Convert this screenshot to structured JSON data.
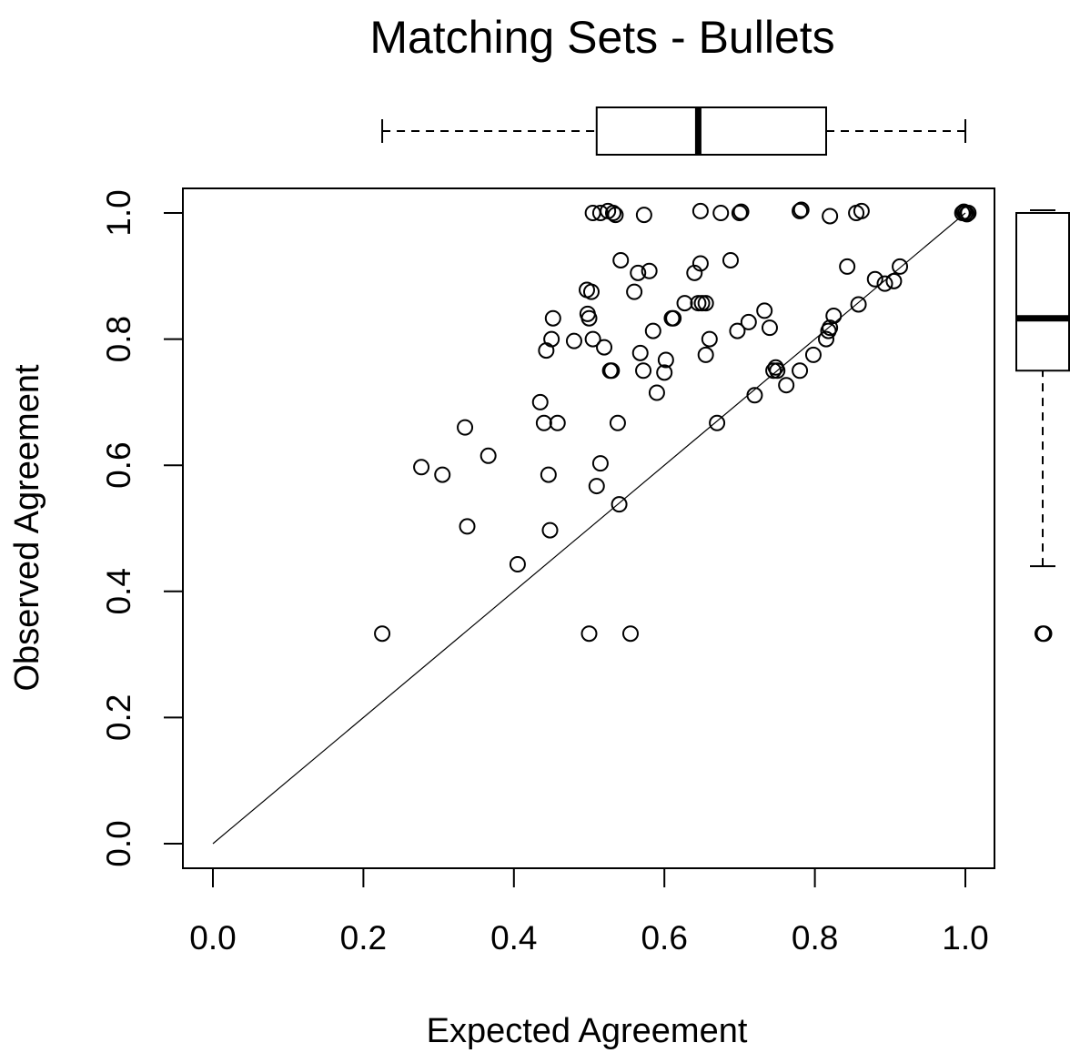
{
  "chart_data": {
    "type": "scatter",
    "title": "Matching Sets - Bullets",
    "xlabel": "Expected Agreement",
    "ylabel": "Observed Agreement",
    "xlim": [
      0.0,
      1.0
    ],
    "ylim": [
      0.0,
      1.0
    ],
    "x_ticks": [
      "0.0",
      "0.2",
      "0.4",
      "0.6",
      "0.8",
      "1.0"
    ],
    "y_ticks": [
      "0.0",
      "0.2",
      "0.4",
      "0.6",
      "0.8",
      "1.0"
    ],
    "grid": false,
    "reference_line": {
      "from": [
        0.0,
        0.0
      ],
      "to": [
        1.0,
        1.0
      ]
    },
    "marginal_boxplots": {
      "x": {
        "whisker_low": 0.225,
        "q1": 0.51,
        "median": 0.645,
        "q3": 0.815,
        "whisker_high": 1.0
      },
      "y": {
        "whisker_low": 0.44,
        "q1": 0.75,
        "median": 0.833,
        "q3": 1.0,
        "whisker_high": 1.0,
        "outliers": [
          0.333
        ]
      }
    },
    "points": [
      {
        "x": 0.225,
        "y": 0.333
      },
      {
        "x": 0.5,
        "y": 0.333
      },
      {
        "x": 0.555,
        "y": 0.333
      },
      {
        "x": 0.277,
        "y": 0.597
      },
      {
        "x": 0.305,
        "y": 0.585
      },
      {
        "x": 0.335,
        "y": 0.66
      },
      {
        "x": 0.338,
        "y": 0.503
      },
      {
        "x": 0.366,
        "y": 0.615
      },
      {
        "x": 0.405,
        "y": 0.443
      },
      {
        "x": 0.435,
        "y": 0.7
      },
      {
        "x": 0.44,
        "y": 0.667
      },
      {
        "x": 0.443,
        "y": 0.782
      },
      {
        "x": 0.446,
        "y": 0.585
      },
      {
        "x": 0.448,
        "y": 0.497
      },
      {
        "x": 0.45,
        "y": 0.8
      },
      {
        "x": 0.452,
        "y": 0.833
      },
      {
        "x": 0.458,
        "y": 0.667
      },
      {
        "x": 0.48,
        "y": 0.797
      },
      {
        "x": 0.497,
        "y": 0.878
      },
      {
        "x": 0.498,
        "y": 0.84
      },
      {
        "x": 0.5,
        "y": 0.833
      },
      {
        "x": 0.503,
        "y": 0.875
      },
      {
        "x": 0.505,
        "y": 0.8
      },
      {
        "x": 0.51,
        "y": 0.567
      },
      {
        "x": 0.515,
        "y": 0.603
      },
      {
        "x": 0.52,
        "y": 0.787
      },
      {
        "x": 0.528,
        "y": 0.75
      },
      {
        "x": 0.53,
        "y": 0.75
      },
      {
        "x": 0.538,
        "y": 0.667
      },
      {
        "x": 0.54,
        "y": 0.538
      },
      {
        "x": 0.542,
        "y": 0.925
      },
      {
        "x": 0.56,
        "y": 0.875
      },
      {
        "x": 0.565,
        "y": 0.905
      },
      {
        "x": 0.568,
        "y": 0.778
      },
      {
        "x": 0.572,
        "y": 0.75
      },
      {
        "x": 0.58,
        "y": 0.908
      },
      {
        "x": 0.585,
        "y": 0.813
      },
      {
        "x": 0.59,
        "y": 0.715
      },
      {
        "x": 0.6,
        "y": 0.747
      },
      {
        "x": 0.602,
        "y": 0.767
      },
      {
        "x": 0.61,
        "y": 0.833
      },
      {
        "x": 0.612,
        "y": 0.833
      },
      {
        "x": 0.627,
        "y": 0.857
      },
      {
        "x": 0.64,
        "y": 0.905
      },
      {
        "x": 0.645,
        "y": 0.857
      },
      {
        "x": 0.648,
        "y": 0.92
      },
      {
        "x": 0.65,
        "y": 0.857
      },
      {
        "x": 0.655,
        "y": 0.857
      },
      {
        "x": 0.655,
        "y": 0.775
      },
      {
        "x": 0.66,
        "y": 0.8
      },
      {
        "x": 0.67,
        "y": 0.667
      },
      {
        "x": 0.688,
        "y": 0.925
      },
      {
        "x": 0.697,
        "y": 0.813
      },
      {
        "x": 0.712,
        "y": 0.827
      },
      {
        "x": 0.72,
        "y": 0.711
      },
      {
        "x": 0.733,
        "y": 0.845
      },
      {
        "x": 0.74,
        "y": 0.818
      },
      {
        "x": 0.745,
        "y": 0.75
      },
      {
        "x": 0.748,
        "y": 0.755
      },
      {
        "x": 0.75,
        "y": 0.75
      },
      {
        "x": 0.762,
        "y": 0.727
      },
      {
        "x": 0.78,
        "y": 0.75
      },
      {
        "x": 0.798,
        "y": 0.775
      },
      {
        "x": 0.815,
        "y": 0.8
      },
      {
        "x": 0.818,
        "y": 0.813
      },
      {
        "x": 0.82,
        "y": 0.818
      },
      {
        "x": 0.825,
        "y": 0.837
      },
      {
        "x": 0.843,
        "y": 0.915
      },
      {
        "x": 0.858,
        "y": 0.855
      },
      {
        "x": 0.88,
        "y": 0.895
      },
      {
        "x": 0.893,
        "y": 0.888
      },
      {
        "x": 0.905,
        "y": 0.892
      },
      {
        "x": 0.913,
        "y": 0.915
      },
      {
        "x": 0.505,
        "y": 1.0
      },
      {
        "x": 0.515,
        "y": 1.0
      },
      {
        "x": 0.525,
        "y": 1.003
      },
      {
        "x": 0.532,
        "y": 1.0
      },
      {
        "x": 0.535,
        "y": 0.997
      },
      {
        "x": 0.573,
        "y": 0.997
      },
      {
        "x": 0.648,
        "y": 1.003
      },
      {
        "x": 0.675,
        "y": 1.0
      },
      {
        "x": 0.7,
        "y": 1.0
      },
      {
        "x": 0.702,
        "y": 1.002
      },
      {
        "x": 0.78,
        "y": 1.003
      },
      {
        "x": 0.782,
        "y": 1.005
      },
      {
        "x": 0.82,
        "y": 0.995
      },
      {
        "x": 0.855,
        "y": 1.0
      },
      {
        "x": 0.862,
        "y": 1.003
      },
      {
        "x": 0.996,
        "y": 1.0
      },
      {
        "x": 0.998,
        "y": 1.002
      },
      {
        "x": 1.0,
        "y": 1.0
      },
      {
        "x": 1.002,
        "y": 0.998
      },
      {
        "x": 1.004,
        "y": 1.0
      }
    ]
  }
}
